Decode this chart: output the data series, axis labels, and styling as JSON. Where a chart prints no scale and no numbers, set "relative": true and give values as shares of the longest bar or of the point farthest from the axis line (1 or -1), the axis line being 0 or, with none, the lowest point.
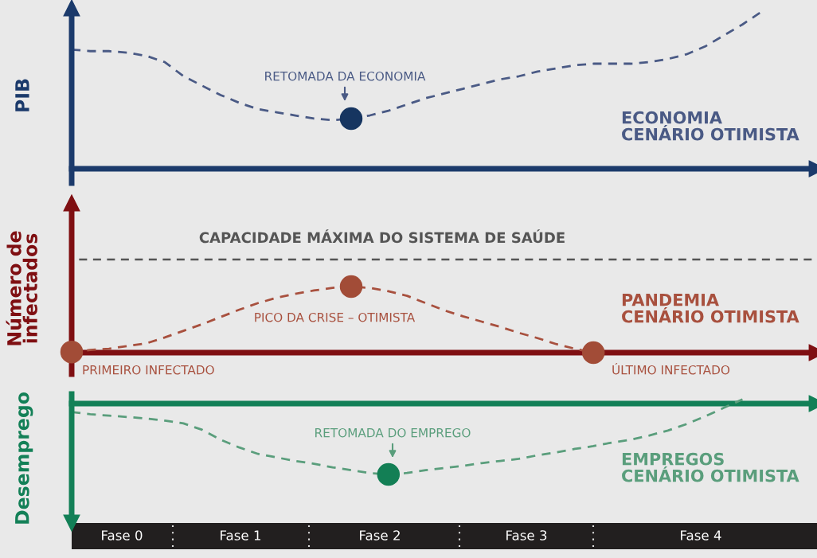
{
  "chart_data": [
    {
      "type": "line",
      "relative": true,
      "ylabel": "PIB",
      "line_style": "dashed",
      "categories": [
        null,
        null,
        null,
        null,
        null,
        null,
        null,
        null,
        null,
        null,
        null,
        null,
        null,
        null,
        null,
        null,
        null,
        null,
        null,
        null,
        null,
        null,
        null,
        null,
        null,
        null,
        null,
        null,
        null,
        null,
        null,
        null,
        null,
        null,
        null,
        null,
        null,
        null
      ],
      "series": [
        {
          "color": "#4a5a85",
          "values": [
            0.76,
            0.75,
            0.75,
            0.74,
            0.72,
            0.68,
            0.59,
            0.53,
            0.47,
            0.42,
            0.38,
            0.36,
            0.34,
            0.32,
            0.31,
            0.32,
            0.34,
            0.37,
            0.41,
            0.45,
            0.48,
            0.51,
            0.54,
            0.57,
            0.59,
            0.62,
            0.64,
            0.66,
            0.67,
            0.67,
            0.67,
            0.68,
            0.7,
            0.73,
            0.78,
            0.85,
            0.92,
            1
          ]
        }
      ],
      "annotations": [
        "RETOMADA DA ECONOMIA",
        "ECONOMIA\nCENÁRIO OTIMISTA"
      ]
    },
    {
      "type": "line",
      "relative": true,
      "ylabel": "Número de\ninfectados",
      "line_style": "dashed",
      "categories": [
        null,
        null,
        null,
        null,
        null,
        null,
        null,
        null,
        null,
        null,
        null,
        null,
        null,
        null,
        null,
        null,
        null,
        null,
        null,
        null,
        null,
        null,
        null,
        null,
        null,
        null,
        null,
        null,
        null
      ],
      "series": [
        {
          "color": "#a8503e",
          "values": [
            0.01,
            0.04,
            0.06,
            0.1,
            0.14,
            0.23,
            0.33,
            0.43,
            0.54,
            0.65,
            0.75,
            0.83,
            0.89,
            0.94,
            0.98,
            1,
            0.98,
            0.93,
            0.86,
            0.75,
            0.64,
            0.55,
            0.47,
            0.39,
            0.3,
            0.22,
            0.13,
            0.06,
            0
          ]
        }
      ],
      "ref_lines": [
        {
          "axis": "y",
          "value": 1.41,
          "label": "CAPACIDADE MÁXIMA DO SISTEMA DE SAÚDE",
          "color": "#555555",
          "line_style": "dashed"
        }
      ],
      "annotations": [
        "PRIMEIRO INFECTADO",
        "PICO DA CRISE – OTIMISTA",
        "ÚLTIMO INFECTADO",
        "PANDEMIA\nCENÁRIO OTIMISTA"
      ]
    },
    {
      "type": "line",
      "relative": true,
      "ylabel": "Desemprego",
      "line_style": "dashed",
      "categories": [
        null,
        null,
        null,
        null,
        null,
        null,
        null,
        null,
        null,
        null,
        null,
        null,
        null,
        null,
        null,
        null,
        null,
        null,
        null,
        null,
        null,
        null,
        null,
        null,
        null,
        null,
        null,
        null,
        null,
        null,
        null,
        null,
        null,
        null,
        null,
        null,
        null
      ],
      "series": [
        {
          "color": "#5a9e7c",
          "values": [
            -0.12,
            -0.15,
            -0.17,
            -0.19,
            -0.21,
            -0.24,
            -0.28,
            -0.37,
            -0.51,
            -0.62,
            -0.71,
            -0.76,
            -0.81,
            -0.85,
            -0.9,
            -0.94,
            -0.98,
            -1,
            -0.98,
            -0.94,
            -0.91,
            -0.88,
            -0.84,
            -0.81,
            -0.78,
            -0.73,
            -0.69,
            -0.64,
            -0.6,
            -0.55,
            -0.51,
            -0.45,
            -0.38,
            -0.29,
            -0.18,
            -0.06,
            0.06
          ]
        }
      ],
      "ref_lines": [
        {
          "axis": "y",
          "value": 0,
          "color": "#138057",
          "line_style": "solid"
        }
      ],
      "annotations": [
        "RETOMADA DO EMPREGO",
        "EMPREGOS\nCENÁRIO OTIMISTA",
        "Fase 0",
        "Fase 1",
        "Fase 2",
        "Fase 3",
        "Fase 4"
      ]
    }
  ]
}
